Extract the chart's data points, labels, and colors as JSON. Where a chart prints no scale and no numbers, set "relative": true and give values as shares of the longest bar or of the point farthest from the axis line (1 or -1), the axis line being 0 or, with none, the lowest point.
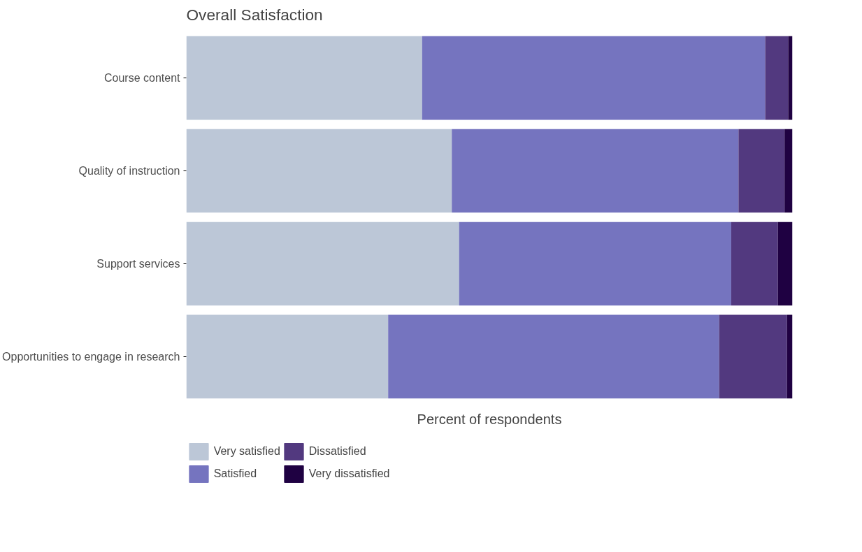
{
  "chart_data": {
    "type": "bar",
    "title": "Overall Satisfaction",
    "xlabel": "Percent of respondents",
    "orientation": "horizontal",
    "stacked": true,
    "relative": true,
    "legend": "bottom",
    "grid": false,
    "tick_labels": "y",
    "categories": [
      "Course content",
      "Quality of instruction",
      "Support services",
      "Opportunities to engage in research"
    ],
    "series": [
      {
        "name": "Very satisfied",
        "color": "#bcc7d7",
        "values": [
          0.389,
          0.438,
          0.45,
          0.333
        ]
      },
      {
        "name": "Satisfied",
        "color": "#7574bf",
        "values": [
          0.566,
          0.473,
          0.449,
          0.546
        ]
      },
      {
        "name": "Dissatisfied",
        "color": "#52397f",
        "values": [
          0.038,
          0.076,
          0.077,
          0.112
        ]
      },
      {
        "name": "Very dissatisfied",
        "color": "#1f0142",
        "values": [
          0.007,
          0.013,
          0.024,
          0.009
        ]
      }
    ]
  }
}
